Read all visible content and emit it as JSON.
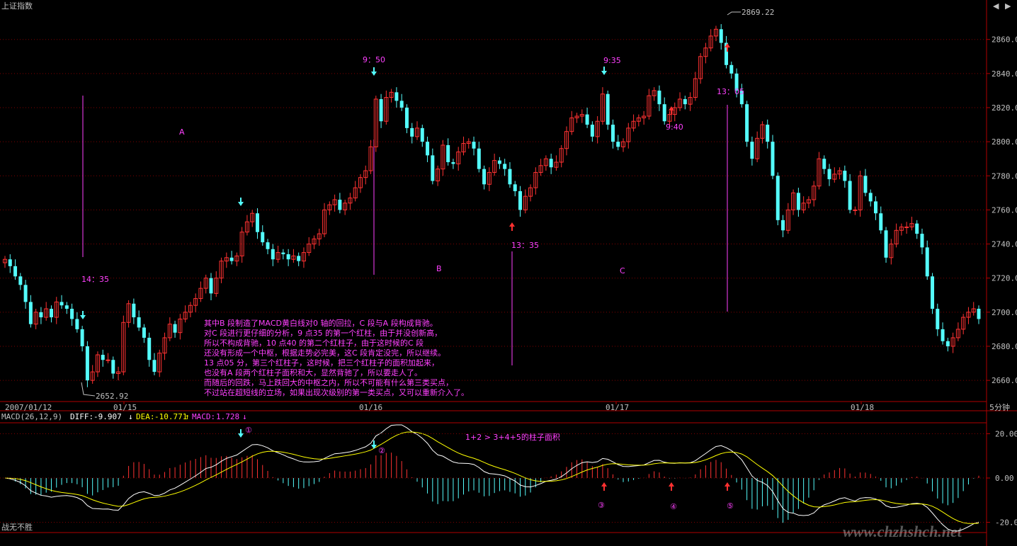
{
  "window": {
    "title": "上证指数",
    "period": "5分钟",
    "footer_left": "战无不胜",
    "watermark": "www.chzhshch.net"
  },
  "colors": {
    "up": "#ff3232",
    "down": "#54fcfc",
    "grid": "#800000",
    "axis": "#b00000",
    "text": "#c0c0c0",
    "annot": "#ff40ff",
    "arrow_up": "#ff3030",
    "arrow_down": "#54fcfc",
    "diff": "#ffffff",
    "dea": "#ffff00"
  },
  "chart_data": [
    {
      "type": "candlestick",
      "title": "上证指数",
      "y_ticks": [
        "2660.0",
        "2680.0",
        "2700.0",
        "2720.0",
        "2740.0",
        "2760.0",
        "2780.0",
        "2800.0",
        "2820.0",
        "2840.0",
        "2860.0"
      ],
      "ylim": [
        2648,
        2874
      ],
      "x_labels": [
        "2007/01/12",
        "01/15",
        "01/16",
        "01/17",
        "01/18"
      ],
      "high_label": "2869.22",
      "low_label": "2652.92",
      "close": [
        2731,
        2727,
        2721,
        2716,
        2706,
        2693,
        2700,
        2697,
        2702,
        2697,
        2706,
        2704,
        2702,
        2696,
        2690,
        2680,
        2660,
        2665,
        2675,
        2672,
        2672,
        2664,
        2665,
        2694,
        2705,
        2697,
        2691,
        2685,
        2672,
        2665,
        2676,
        2685,
        2693,
        2688,
        2696,
        2700,
        2704,
        2708,
        2714,
        2720,
        2711,
        2720,
        2730,
        2732,
        2730,
        2733,
        2747,
        2753,
        2758,
        2747,
        2741,
        2737,
        2731,
        2735,
        2734,
        2731,
        2733,
        2730,
        2735,
        2740,
        2743,
        2746,
        2760,
        2763,
        2766,
        2760,
        2764,
        2767,
        2773,
        2779,
        2783,
        2797,
        2825,
        2812,
        2826,
        2829,
        2824,
        2820,
        2808,
        2803,
        2808,
        2800,
        2792,
        2777,
        2784,
        2798,
        2788,
        2787,
        2794,
        2799,
        2800,
        2796,
        2784,
        2775,
        2782,
        2789,
        2787,
        2784,
        2775,
        2771,
        2760,
        2768,
        2773,
        2782,
        2786,
        2790,
        2785,
        2788,
        2796,
        2806,
        2814,
        2815,
        2816,
        2810,
        2803,
        2812,
        2828,
        2810,
        2800,
        2797,
        2800,
        2808,
        2812,
        2814,
        2815,
        2827,
        2830,
        2822,
        2812,
        2816,
        2820,
        2825,
        2822,
        2826,
        2837,
        2850,
        2855,
        2862,
        2866,
        2858,
        2845,
        2840,
        2830,
        2822,
        2800,
        2790,
        2802,
        2810,
        2800,
        2780,
        2754,
        2748,
        2760,
        2770,
        2760,
        2764,
        2766,
        2774,
        2790,
        2784,
        2778,
        2781,
        2783,
        2777,
        2760,
        2760,
        2780,
        2770,
        2765,
        2758,
        2748,
        2732,
        2740,
        2748,
        2750,
        2750,
        2752,
        2746,
        2738,
        2721,
        2702,
        2690,
        2683,
        2680,
        2685,
        2690,
        2697,
        2700,
        2702,
        2696
      ],
      "macd": {
        "label": "MACD(26,12,9)",
        "diff": "-9.907",
        "dea": "-10.771",
        "macd": "1.728",
        "y_ticks": [
          "20.00",
          "0.00",
          "-20.00"
        ],
        "ylim": [
          -24,
          24
        ]
      }
    }
  ],
  "annotations": [
    {
      "text": "14：35"
    },
    {
      "text": "9：50"
    },
    {
      "text": "9:35"
    },
    {
      "text": "9:40"
    },
    {
      "text": "13：35"
    },
    {
      "text": "13：05"
    },
    {
      "text": "A"
    },
    {
      "text": "B"
    },
    {
      "text": "C"
    },
    {
      "text": "①"
    },
    {
      "text": "②"
    },
    {
      "text": "③"
    },
    {
      "text": "④"
    },
    {
      "text": "⑤"
    },
    {
      "text": "1+2 > 3+4+5的柱子面积"
    }
  ],
  "commentary": [
    "其中B 段制造了MACD黄白线对0 轴的回拉，C 段与A 段构成背驰。",
    "对C 段进行更仔细的分析，9 点35 的第一个红柱，由于并没创新高，",
    "所以不构成背驰，10 点40 的第二个红柱子，由于这时候的C 段",
    "还没有形成一个中枢，根据走势必完美，这C 段肯定没完，所以继续。",
    "13 点05 分，第三个红柱子，这时候，把三个红柱子的面积加起来，",
    "也没有A 段两个红柱子面积和大，显然背驰了，所以要走人了。",
    "而随后的回跌，马上跌回大的中枢之内，所以不可能有什么第三类买点，",
    "不过站在超短线的立场，如果出现次级别的第一类买点，又可以重新介入了。"
  ]
}
